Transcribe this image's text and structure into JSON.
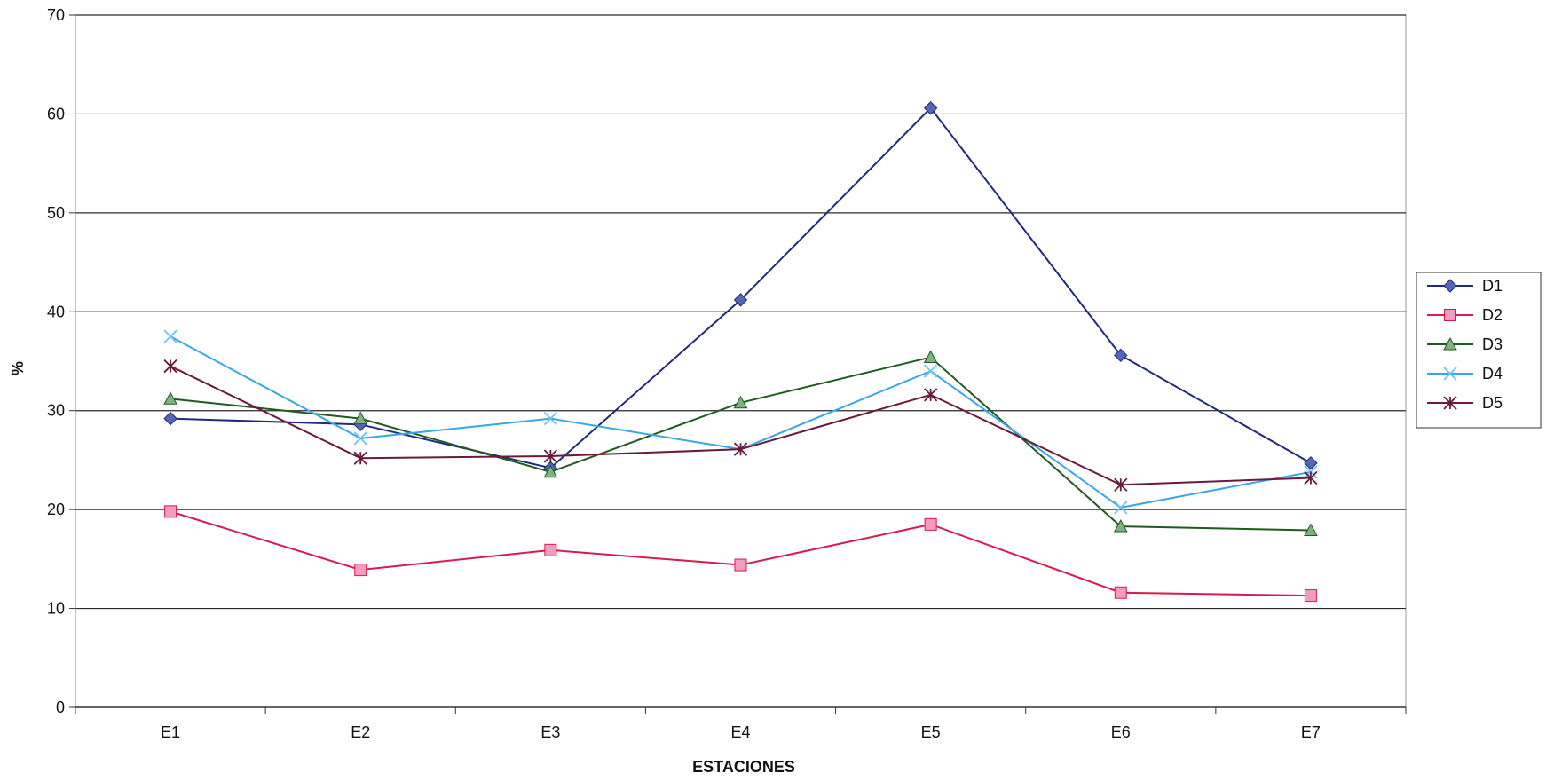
{
  "chart_data": {
    "type": "line",
    "title": "",
    "xlabel": "ESTACIONES",
    "ylabel": "%",
    "categories": [
      "E1",
      "E2",
      "E3",
      "E4",
      "E5",
      "E6",
      "E7"
    ],
    "ylim": [
      0,
      70
    ],
    "yticks": [
      0,
      10,
      20,
      30,
      40,
      50,
      60,
      70
    ],
    "grid": true,
    "legend_position": "right",
    "series": [
      {
        "name": "D1",
        "color": "#1f2a78",
        "marker": "diamond",
        "marker_color": "#5566b8",
        "values": [
          29.2,
          28.6,
          24.2,
          41.2,
          60.6,
          35.6,
          24.7
        ]
      },
      {
        "name": "D2",
        "color": "#d81b4a",
        "marker": "square",
        "marker_color": "#f49cc0",
        "values": [
          19.8,
          13.9,
          15.9,
          14.4,
          18.5,
          11.6,
          11.3
        ]
      },
      {
        "name": "D3",
        "color": "#1f5a1f",
        "marker": "triangle",
        "marker_color": "#7fb27f",
        "values": [
          31.2,
          29.2,
          23.8,
          30.8,
          35.4,
          18.3,
          17.9
        ]
      },
      {
        "name": "D4",
        "color": "#3aa6e8",
        "marker": "x",
        "marker_color": "#6cc4f4",
        "values": [
          37.5,
          27.2,
          29.2,
          26.1,
          34.0,
          20.2,
          23.8
        ]
      },
      {
        "name": "D5",
        "color": "#6a1a3a",
        "marker": "asterisk",
        "marker_color": "#a35a7f",
        "values": [
          34.5,
          25.2,
          25.4,
          26.1,
          31.6,
          22.5,
          23.2
        ]
      }
    ]
  }
}
